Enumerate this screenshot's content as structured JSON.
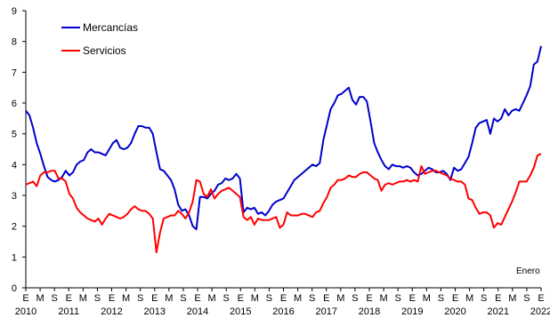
{
  "chart_data": {
    "type": "line",
    "title": "",
    "xlabel": "",
    "ylabel": "",
    "ylim": [
      0,
      9
    ],
    "yticks": [
      0,
      1,
      2,
      3,
      4,
      5,
      6,
      7,
      8,
      9
    ],
    "grid": false,
    "legend_position": "top-left",
    "annotation": "Enero",
    "x_quarter_labels": [
      "E",
      "M",
      "S",
      "E",
      "M",
      "S",
      "E",
      "M",
      "S",
      "E",
      "M",
      "S",
      "E",
      "M",
      "S",
      "E",
      "M",
      "S",
      "E",
      "M",
      "S",
      "E",
      "M",
      "S",
      "E",
      "M",
      "S",
      "E",
      "M",
      "S",
      "E",
      "M",
      "S",
      "E",
      "M",
      "S",
      "E"
    ],
    "years": [
      "2010",
      "2011",
      "2012",
      "2013",
      "2014",
      "2015",
      "2016",
      "2017",
      "2018",
      "2019",
      "2020",
      "2021",
      "2022"
    ],
    "x_range": [
      "2010-01",
      "2022-01"
    ],
    "series": [
      {
        "name": "Mercancías",
        "color": "#0000cc",
        "values": [
          5.75,
          5.6,
          5.2,
          4.7,
          4.35,
          3.95,
          3.6,
          3.5,
          3.45,
          3.5,
          3.6,
          3.8,
          3.65,
          3.75,
          4.0,
          4.1,
          4.15,
          4.4,
          4.5,
          4.4,
          4.4,
          4.35,
          4.3,
          4.5,
          4.7,
          4.8,
          4.55,
          4.5,
          4.55,
          4.7,
          5.0,
          5.25,
          5.25,
          5.2,
          5.2,
          5.0,
          4.4,
          3.85,
          3.8,
          3.65,
          3.5,
          3.2,
          2.7,
          2.5,
          2.55,
          2.35,
          2.0,
          1.9,
          2.95,
          2.95,
          2.9,
          3.05,
          3.15,
          3.35,
          3.4,
          3.55,
          3.5,
          3.55,
          3.7,
          3.55,
          2.45,
          2.6,
          2.55,
          2.6,
          2.4,
          2.45,
          2.35,
          2.5,
          2.7,
          2.8,
          2.85,
          2.9,
          3.1,
          3.3,
          3.5,
          3.6,
          3.7,
          3.8,
          3.9,
          4.0,
          3.95,
          4.05,
          4.8,
          5.3,
          5.8,
          6.0,
          6.25,
          6.3,
          6.4,
          6.5,
          6.1,
          5.95,
          6.2,
          6.2,
          6.05,
          5.4,
          4.7,
          4.4,
          4.15,
          3.95,
          3.85,
          4.0,
          3.95,
          3.95,
          3.9,
          3.95,
          3.9,
          3.75,
          3.65,
          3.7,
          3.8,
          3.9,
          3.85,
          3.75,
          3.75,
          3.8,
          3.7,
          3.5,
          3.9,
          3.8,
          3.85,
          4.05,
          4.25,
          4.7,
          5.2,
          5.35,
          5.4,
          5.45,
          5.0,
          5.5,
          5.4,
          5.5,
          5.8,
          5.6,
          5.75,
          5.8,
          5.75,
          6.0,
          6.25,
          6.55,
          7.25,
          7.35,
          7.85
        ]
      },
      {
        "name": "Servicios",
        "color": "#ff0000",
        "values": [
          3.35,
          3.4,
          3.45,
          3.3,
          3.65,
          3.75,
          3.75,
          3.8,
          3.8,
          3.55,
          3.55,
          3.45,
          3.05,
          2.9,
          2.6,
          2.45,
          2.35,
          2.25,
          2.2,
          2.15,
          2.25,
          2.05,
          2.25,
          2.4,
          2.35,
          2.3,
          2.25,
          2.3,
          2.4,
          2.55,
          2.65,
          2.55,
          2.5,
          2.5,
          2.4,
          2.25,
          1.15,
          1.8,
          2.25,
          2.3,
          2.35,
          2.35,
          2.5,
          2.4,
          2.25,
          2.45,
          2.8,
          3.5,
          3.45,
          3.05,
          2.95,
          3.2,
          2.9,
          3.05,
          3.15,
          3.2,
          3.25,
          3.15,
          3.05,
          2.95,
          2.3,
          2.2,
          2.3,
          2.05,
          2.25,
          2.2,
          2.2,
          2.2,
          2.25,
          2.3,
          1.95,
          2.05,
          2.45,
          2.35,
          2.35,
          2.35,
          2.4,
          2.4,
          2.35,
          2.3,
          2.45,
          2.5,
          2.75,
          2.95,
          3.25,
          3.35,
          3.5,
          3.5,
          3.55,
          3.65,
          3.6,
          3.6,
          3.7,
          3.75,
          3.75,
          3.65,
          3.55,
          3.5,
          3.15,
          3.35,
          3.4,
          3.35,
          3.4,
          3.45,
          3.45,
          3.5,
          3.45,
          3.5,
          3.45,
          3.95,
          3.7,
          3.75,
          3.8,
          3.8,
          3.75,
          3.7,
          3.65,
          3.55,
          3.5,
          3.45,
          3.45,
          3.35,
          2.9,
          2.85,
          2.6,
          2.4,
          2.45,
          2.45,
          2.35,
          1.95,
          2.1,
          2.05,
          2.3,
          2.55,
          2.8,
          3.1,
          3.45,
          3.45,
          3.45,
          3.65,
          3.9,
          4.3,
          4.35
        ]
      }
    ]
  }
}
